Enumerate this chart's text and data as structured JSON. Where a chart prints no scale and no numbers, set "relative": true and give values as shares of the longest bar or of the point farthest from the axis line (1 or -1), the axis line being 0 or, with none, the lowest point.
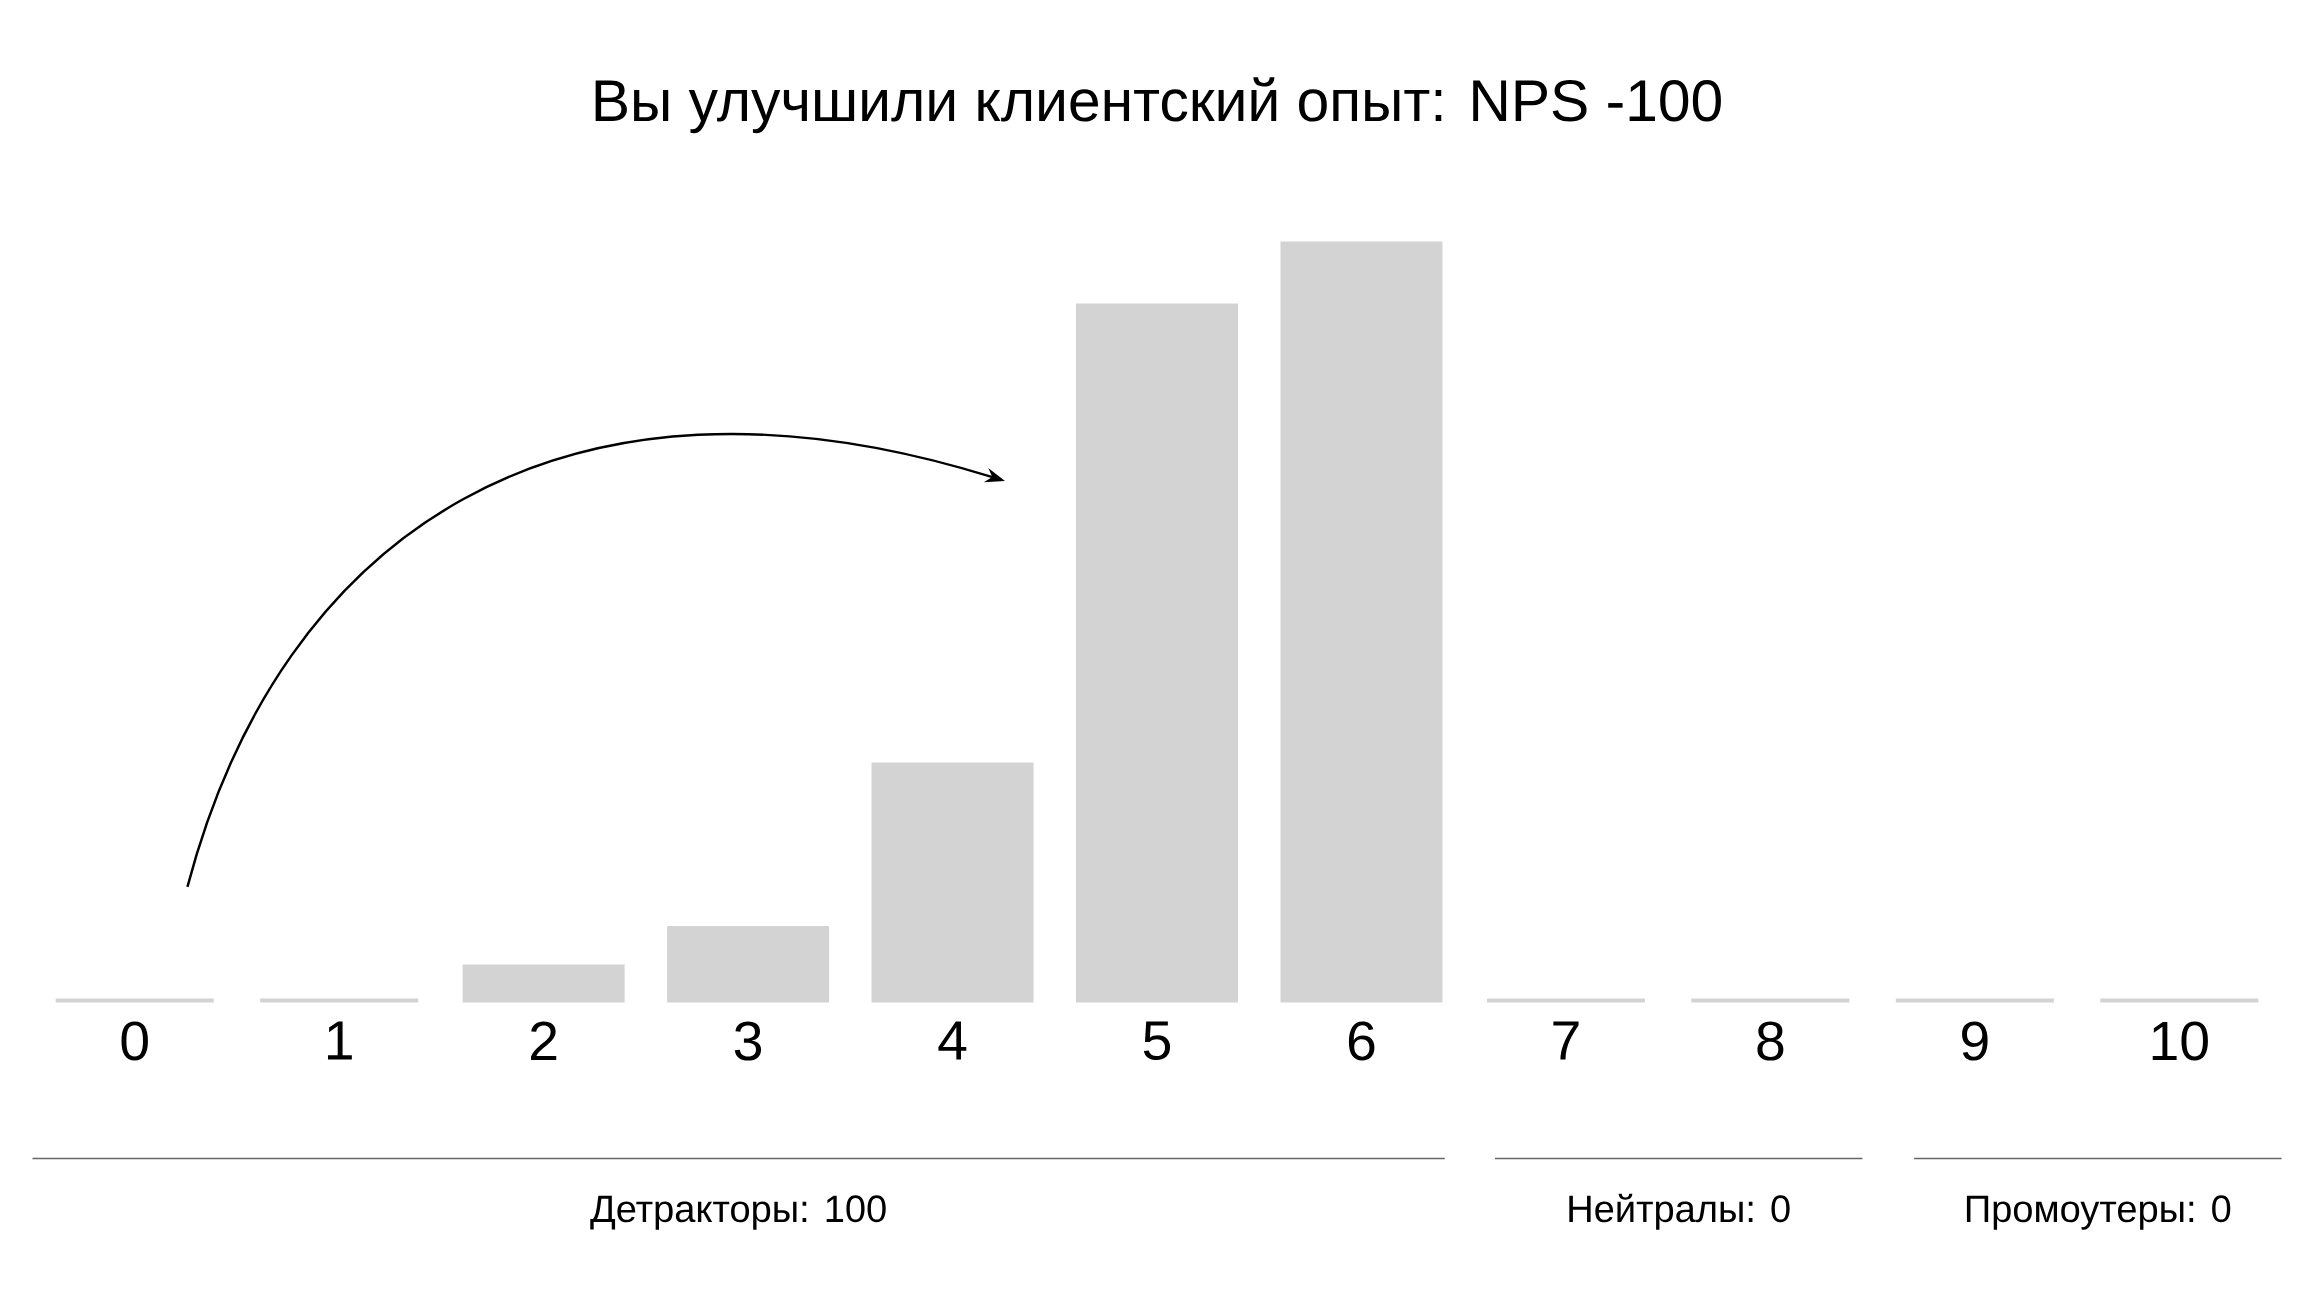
{
  "chart_data": {
    "type": "bar",
    "title": "Вы улучшили клиентский опыт: NPS -100",
    "categories": [
      "0",
      "1",
      "2",
      "3",
      "4",
      "5",
      "6",
      "7",
      "8",
      "9",
      "10"
    ],
    "values": [
      0,
      0,
      0.045,
      0.096,
      0.312,
      0.918,
      1,
      0,
      0,
      0,
      0
    ],
    "color": "#d3d3d3",
    "relative": true,
    "annotations": [
      "Детракторы: 100",
      "Нейтралы: 0",
      "Промоутеры: 0"
    ]
  }
}
